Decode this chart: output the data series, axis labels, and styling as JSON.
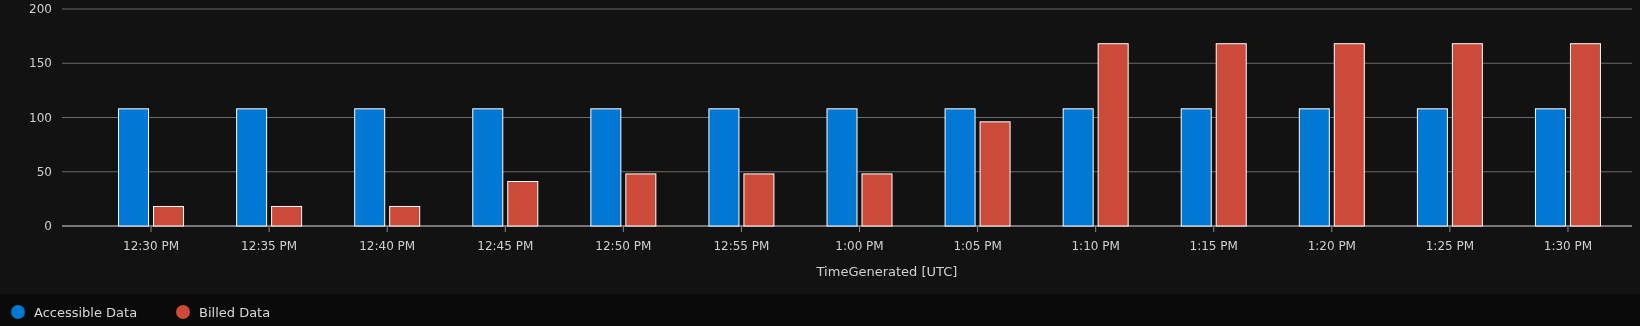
{
  "chart_data": {
    "type": "bar",
    "xlabel": "TimeGenerated [UTC]",
    "categories": [
      "12:30 PM",
      "12:35 PM",
      "12:40 PM",
      "12:45 PM",
      "12:50 PM",
      "12:55 PM",
      "1:00 PM",
      "1:05 PM",
      "1:10 PM",
      "1:15 PM",
      "1:20 PM",
      "1:25 PM",
      "1:30 PM"
    ],
    "series": [
      {
        "name": "Accessible Data",
        "color": "#0078d4",
        "values": [
          108,
          108,
          108,
          108,
          108,
          108,
          108,
          108,
          108,
          108,
          108,
          108,
          108
        ]
      },
      {
        "name": "Billed Data",
        "color": "#cc4a3a",
        "values": [
          18,
          18,
          18,
          41,
          48,
          48,
          48,
          96,
          168,
          168,
          168,
          168,
          168
        ]
      }
    ],
    "ylim": [
      0,
      200
    ],
    "yticks": [
      0,
      50,
      100,
      150,
      200
    ],
    "grid": "y",
    "legend": "bottom left"
  }
}
